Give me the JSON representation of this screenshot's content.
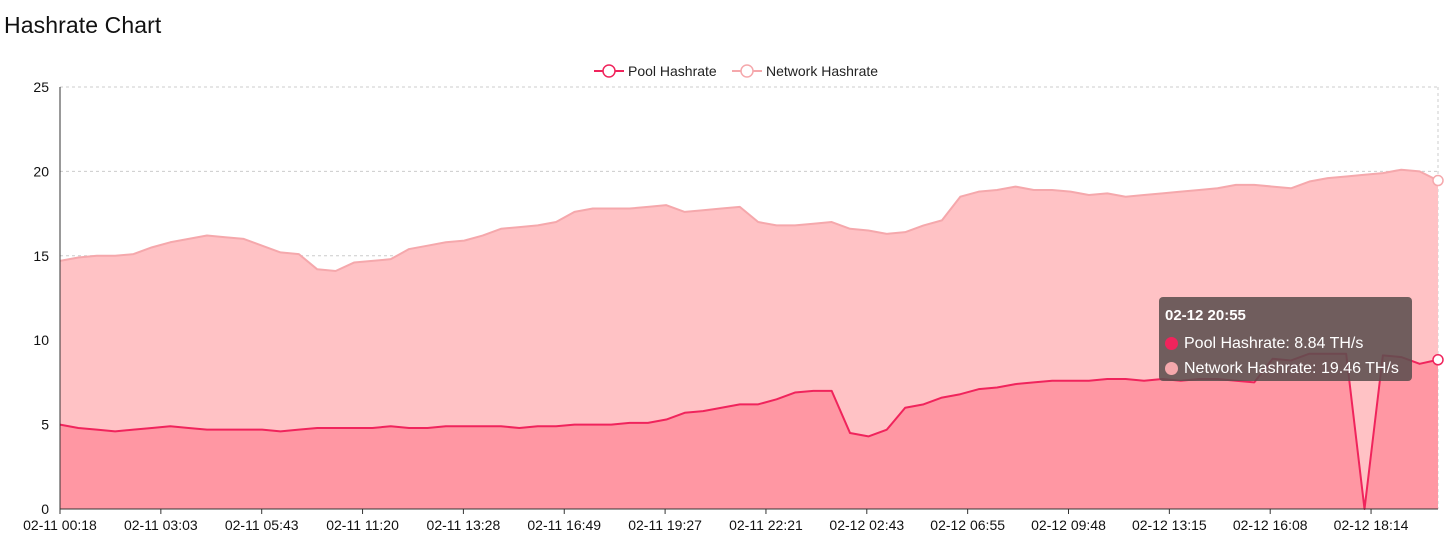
{
  "page": {
    "title": "Hashrate Chart"
  },
  "colors": {
    "pool": "#f0245c",
    "pool_fill": "#ff97a3",
    "network": "#f5a8ac",
    "network_fill": "#ffc2c5",
    "grid": "#cccccc"
  },
  "tooltip": {
    "time": "02-12 20:55",
    "pool_text": "Pool Hashrate: 8.84 TH/s",
    "network_text": "Network Hashrate: 19.46 TH/s"
  },
  "chart_data": {
    "type": "area",
    "title": "Hashrate Chart",
    "xlabel": "",
    "ylabel": "",
    "ylim": [
      0,
      25
    ],
    "yticks": [
      0,
      5,
      10,
      15,
      20,
      25
    ],
    "grid": true,
    "legend": "top-center",
    "x_ticks": [
      "02-11 00:18",
      "02-11 03:03",
      "02-11 05:43",
      "02-11 11:20",
      "02-11 13:28",
      "02-11 16:49",
      "02-11 19:27",
      "02-11 22:21",
      "02-12 02:43",
      "02-12 06:55",
      "02-12 09:48",
      "02-12 13:15",
      "02-12 16:08",
      "02-12 18:14"
    ],
    "series": [
      {
        "name": "Pool Hashrate",
        "values": [
          5.0,
          4.8,
          4.7,
          4.6,
          4.7,
          4.8,
          4.9,
          4.8,
          4.7,
          4.7,
          4.7,
          4.7,
          4.6,
          4.7,
          4.8,
          4.8,
          4.8,
          4.8,
          4.9,
          4.8,
          4.8,
          4.9,
          4.9,
          4.9,
          4.9,
          4.8,
          4.9,
          4.9,
          5.0,
          5.0,
          5.0,
          5.1,
          5.1,
          5.3,
          5.7,
          5.8,
          6.0,
          6.2,
          6.2,
          6.5,
          6.9,
          7.0,
          7.0,
          4.5,
          4.3,
          4.7,
          6.0,
          6.2,
          6.6,
          6.8,
          7.1,
          7.2,
          7.4,
          7.5,
          7.6,
          7.6,
          7.6,
          7.7,
          7.7,
          7.6,
          7.7,
          7.6,
          7.7,
          7.7,
          7.6,
          7.5,
          8.9,
          8.8,
          9.2,
          9.2,
          9.2,
          0.0,
          9.1,
          9.0,
          8.6,
          8.84
        ]
      },
      {
        "name": "Network Hashrate",
        "values": [
          14.7,
          14.9,
          15.0,
          15.0,
          15.1,
          15.5,
          15.8,
          16.0,
          16.2,
          16.1,
          16.0,
          15.6,
          15.2,
          15.1,
          14.2,
          14.1,
          14.6,
          14.7,
          14.8,
          15.4,
          15.6,
          15.8,
          15.9,
          16.2,
          16.6,
          16.7,
          16.8,
          17.0,
          17.6,
          17.8,
          17.8,
          17.8,
          17.9,
          18.0,
          17.6,
          17.7,
          17.8,
          17.9,
          17.0,
          16.8,
          16.8,
          16.9,
          17.0,
          16.6,
          16.5,
          16.3,
          16.4,
          16.8,
          17.1,
          18.5,
          18.8,
          18.9,
          19.1,
          18.9,
          18.9,
          18.8,
          18.6,
          18.7,
          18.5,
          18.6,
          18.7,
          18.8,
          18.9,
          19.0,
          19.2,
          19.2,
          19.1,
          19.0,
          19.4,
          19.6,
          19.7,
          19.8,
          19.9,
          20.1,
          20.0,
          19.46
        ]
      }
    ]
  }
}
